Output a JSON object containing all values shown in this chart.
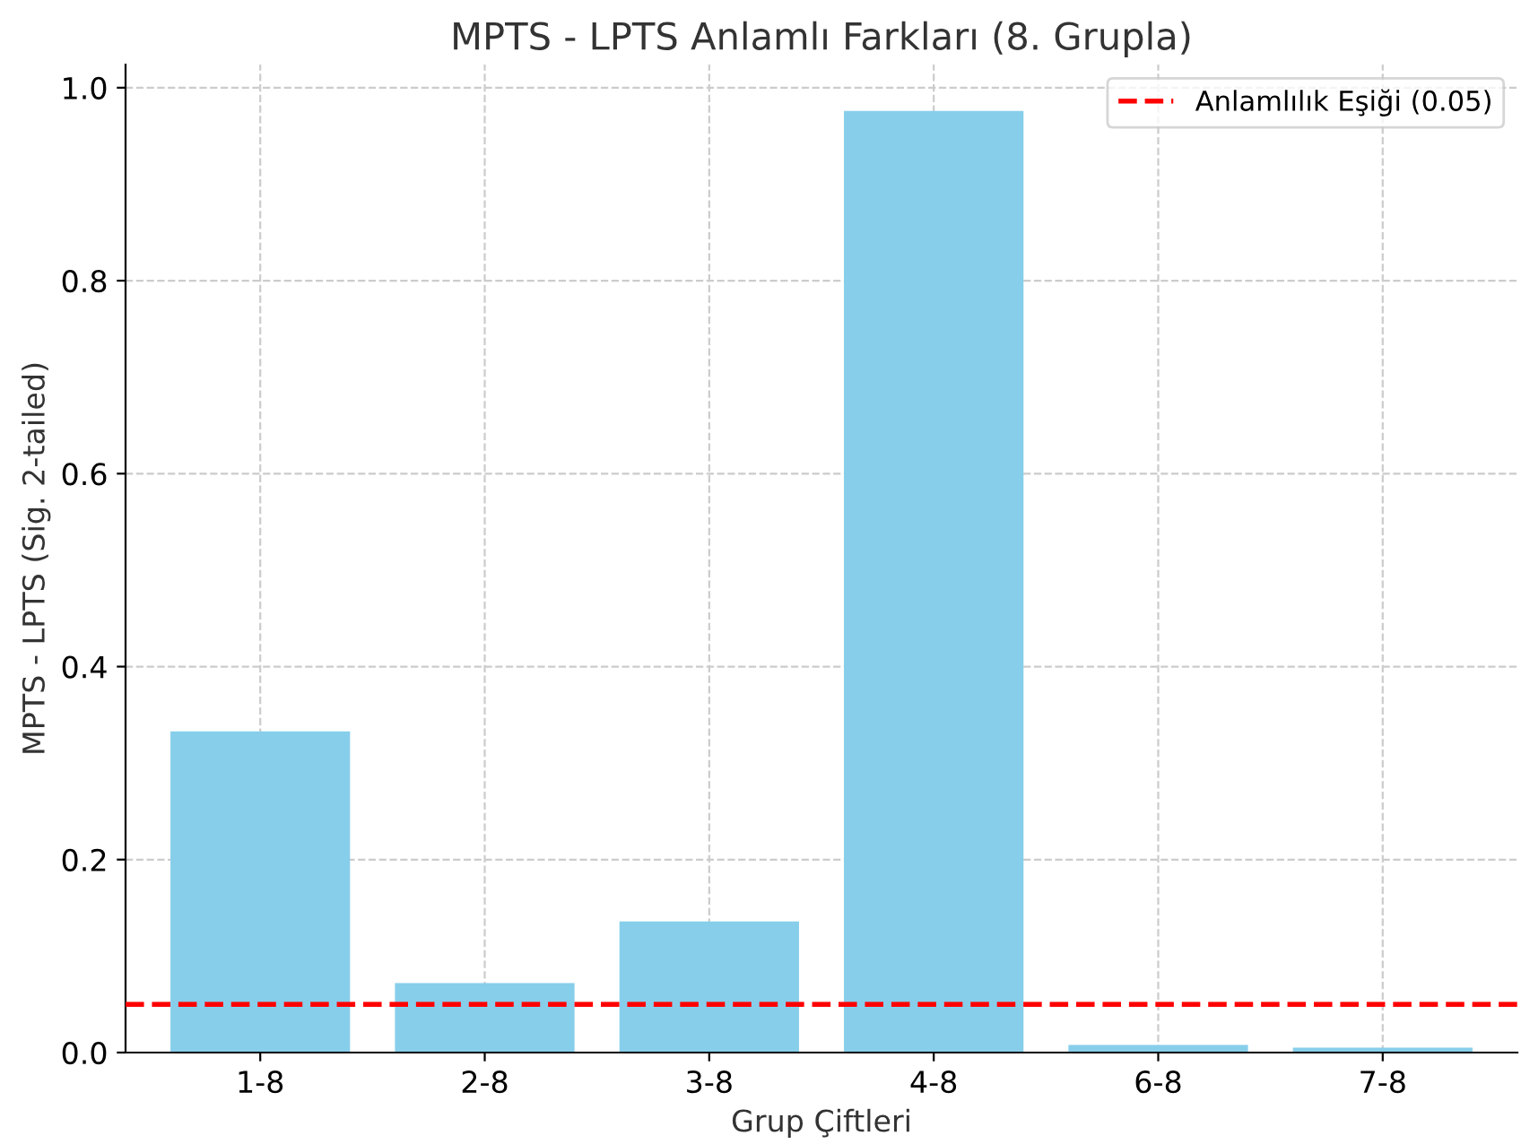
{
  "chart_data": {
    "type": "bar",
    "title": "MPTS - LPTS Anlamlı Farkları (8. Grupla)",
    "xlabel": "Grup Çiftleri",
    "ylabel": "MPTS - LPTS (Sig. 2-tailed)",
    "categories": [
      "1-8",
      "2-8",
      "3-8",
      "4-8",
      "6-8",
      "7-8"
    ],
    "values": [
      0.333,
      0.072,
      0.136,
      0.976,
      0.008,
      0.005
    ],
    "color": "#87ceeb",
    "ylim": [
      0,
      1.024
    ],
    "yticks": [
      {
        "value": 0,
        "label": "0.0"
      },
      {
        "value": 0.2,
        "label": "0.2"
      },
      {
        "value": 0.4,
        "label": "0.4"
      },
      {
        "value": 0.6,
        "label": "0.6"
      },
      {
        "value": 0.8,
        "label": "0.8"
      },
      {
        "value": 1,
        "label": "1.0"
      }
    ],
    "grid": true,
    "legend": "top right",
    "ref_lines": [
      {
        "axis": "y",
        "value": 0.05,
        "label": "Anlamlılık Eşiği (0.05)",
        "color": "#ff0000",
        "line_style": "dashed"
      }
    ]
  }
}
